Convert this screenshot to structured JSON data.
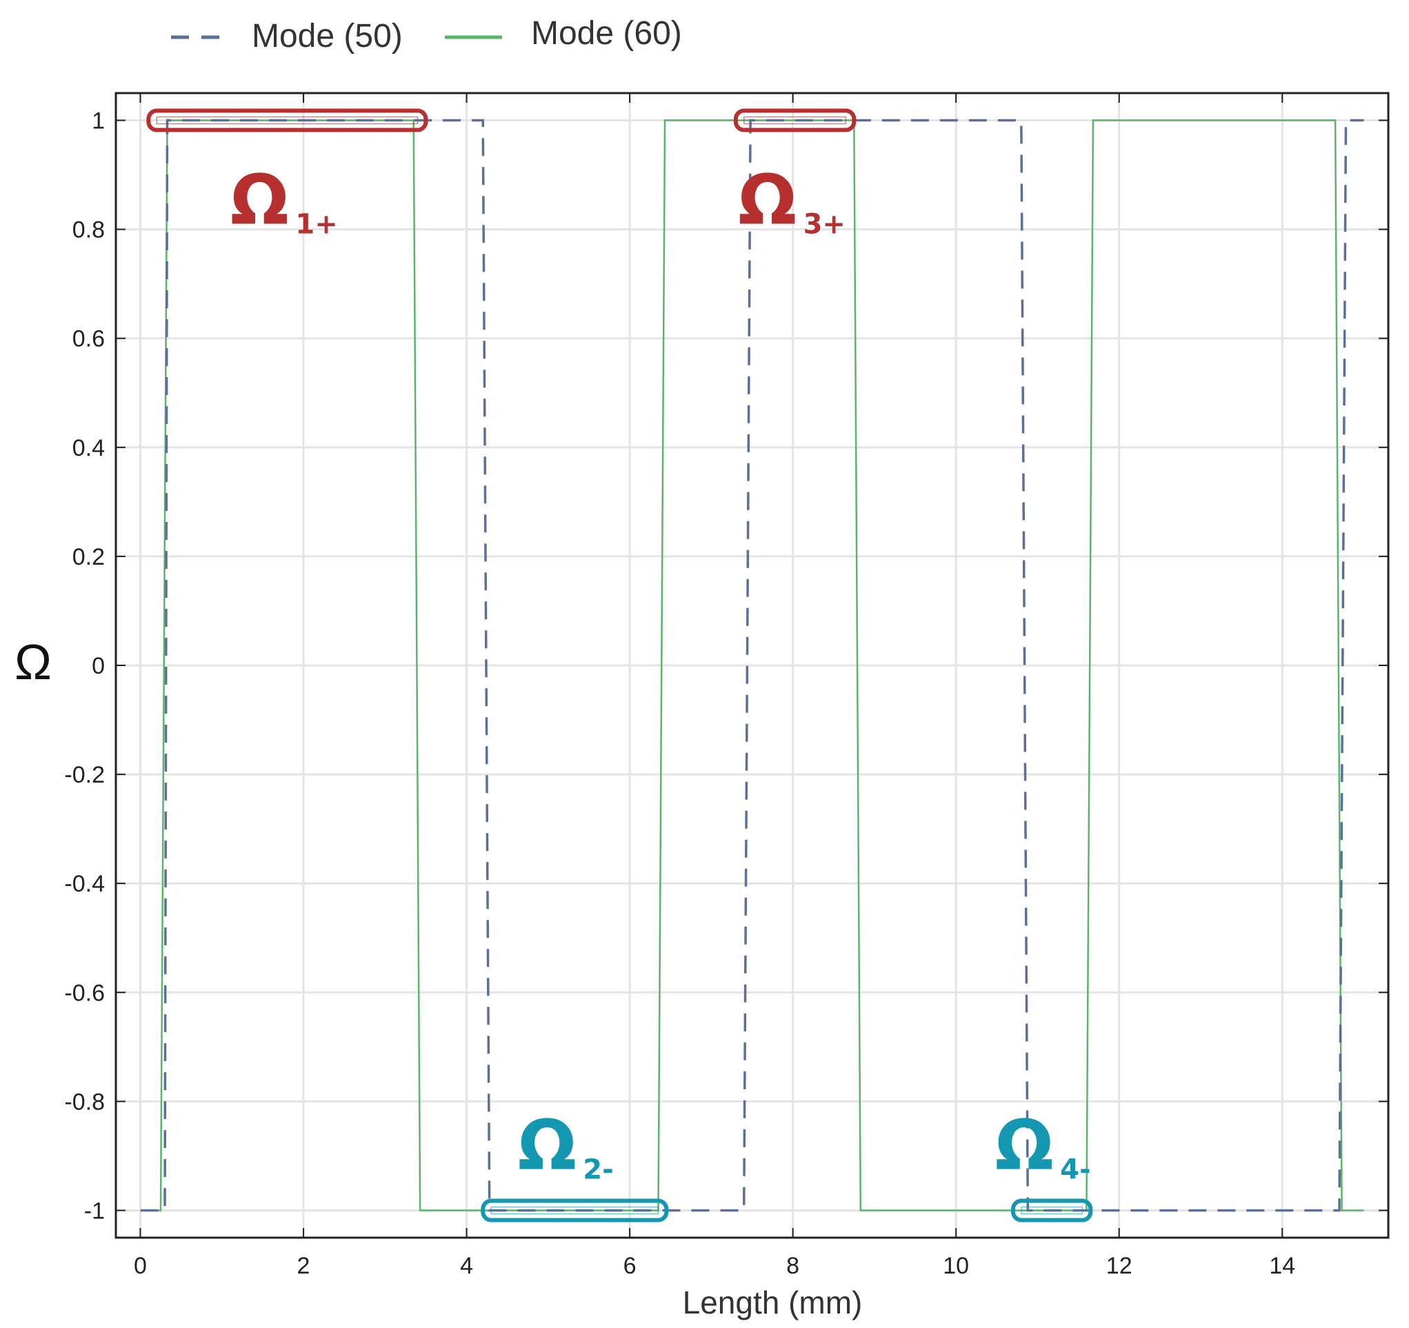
{
  "chart_data": {
    "type": "line",
    "xlabel": "Length (mm)",
    "ylabel": "Ω",
    "xlim": [
      -0.3,
      15.3
    ],
    "ylim": [
      -1.05,
      1.05
    ],
    "xticks": [
      0,
      2,
      4,
      6,
      8,
      10,
      12,
      14
    ],
    "yticks": [
      1,
      0.8,
      0.6,
      0.4,
      0.2,
      0,
      -0.2,
      -0.4,
      -0.6,
      -0.8,
      -1
    ],
    "grid": true,
    "legend_position": "top",
    "series": [
      {
        "name": "Mode (50)",
        "style": "dashed",
        "color": "#5b6f99",
        "x": [
          0,
          0.3,
          0.33,
          4.2,
          4.28,
          7.4,
          7.48,
          10.8,
          10.88,
          14.7,
          14.78,
          15
        ],
        "y": [
          -1,
          -1,
          1,
          1,
          -1,
          -1,
          1,
          1,
          -1,
          -1,
          1,
          1
        ]
      },
      {
        "name": "Mode (60)",
        "style": "solid",
        "color": "#5cb36a",
        "x": [
          0,
          0.25,
          0.33,
          3.35,
          3.43,
          6.35,
          6.43,
          8.75,
          8.83,
          11.6,
          11.68,
          14.65,
          14.73,
          15
        ],
        "y": [
          -1,
          -1,
          1,
          1,
          -1,
          -1,
          1,
          1,
          -1,
          -1,
          1,
          1,
          -1,
          -1
        ]
      }
    ],
    "annotations": [
      {
        "main": "Ω",
        "sub": "1+",
        "color": "#b5302f",
        "x_start": 0.1,
        "x_end": 3.5,
        "y": 1
      },
      {
        "main": "Ω",
        "sub": "2-",
        "color": "#1497b0",
        "x_start": 4.2,
        "x_end": 6.45,
        "y": -1
      },
      {
        "main": "Ω",
        "sub": "3+",
        "color": "#b5302f",
        "x_start": 7.3,
        "x_end": 8.75,
        "y": 1
      },
      {
        "main": "Ω",
        "sub": "4-",
        "color": "#1497b0",
        "x_start": 10.7,
        "x_end": 11.65,
        "y": -1
      }
    ]
  }
}
